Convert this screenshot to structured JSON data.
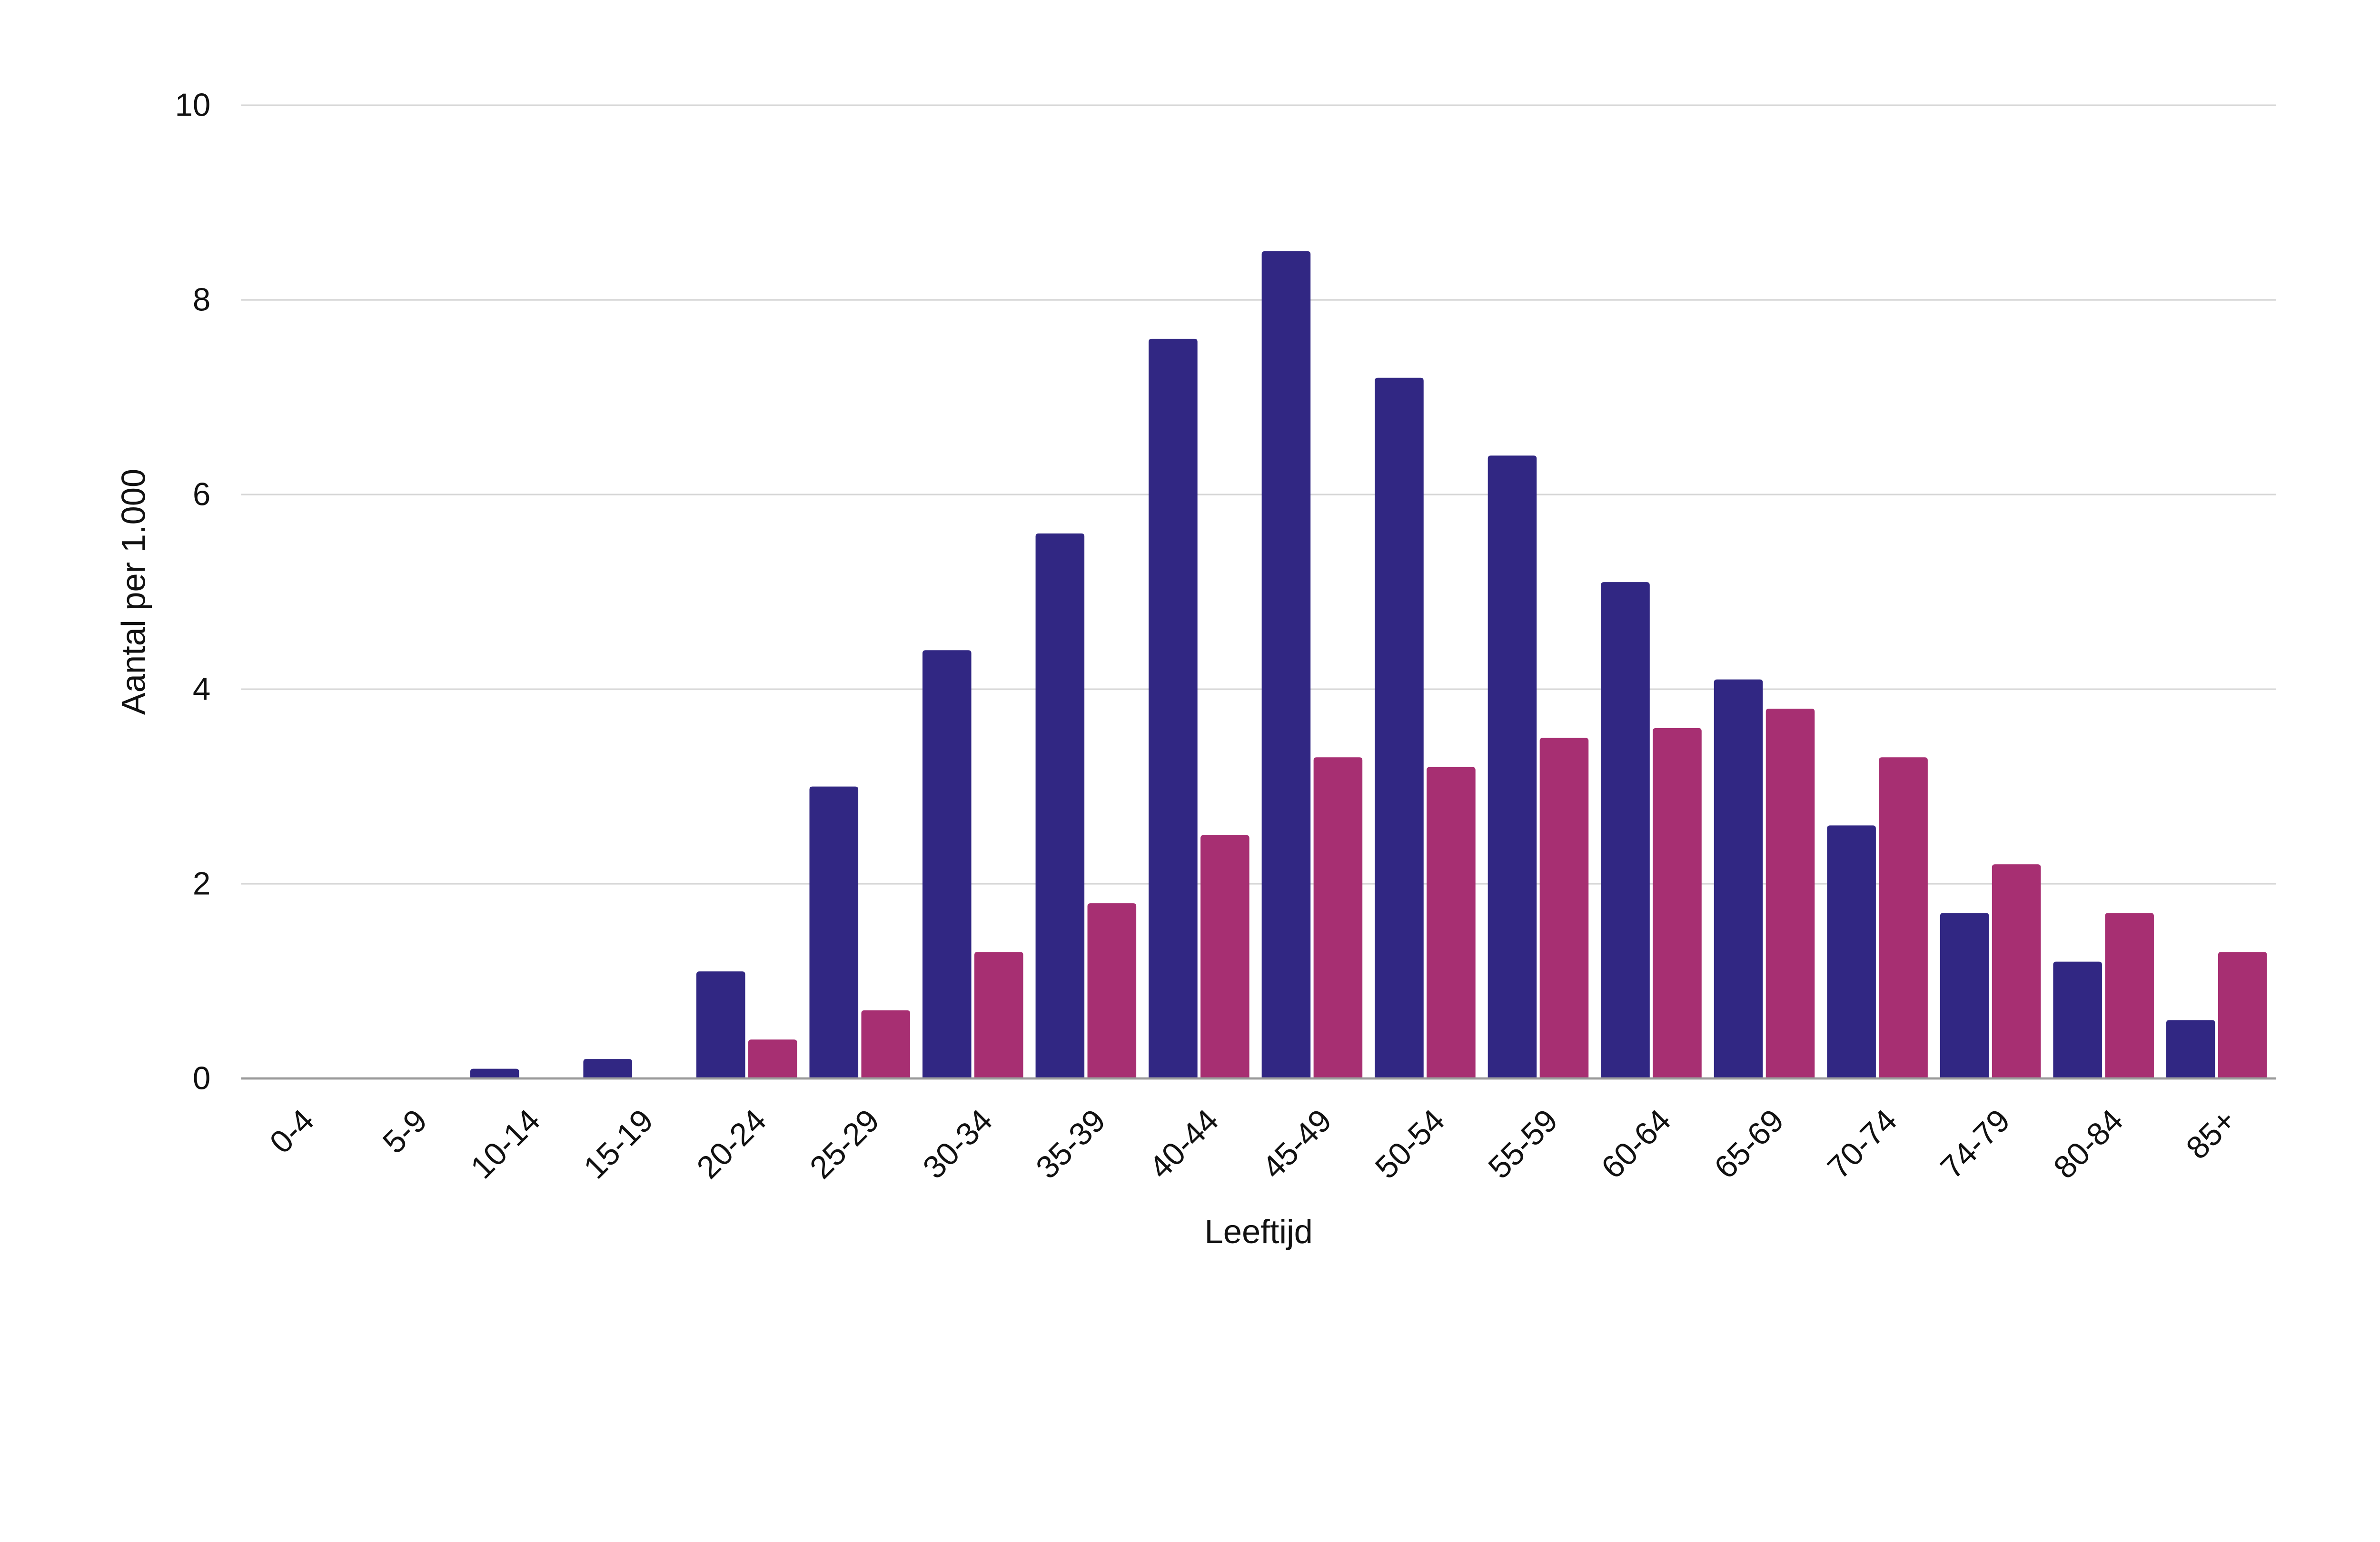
{
  "chart_data": {
    "type": "bar",
    "title": "",
    "xlabel": "Leeftijd",
    "ylabel": "Aantal per 1.000",
    "ylim": [
      0,
      10
    ],
    "yticks": [
      0,
      2,
      4,
      6,
      8,
      10
    ],
    "grid": true,
    "legend": "none",
    "categories": [
      "0-4",
      "5-9",
      "10-14",
      "15-19",
      "20-24",
      "25-29",
      "30-34",
      "35-39",
      "40-44",
      "45-49",
      "50-54",
      "55-59",
      "60-64",
      "65-69",
      "70-74",
      "74-79",
      "80-84",
      "85+"
    ],
    "series": [
      {
        "color": "#312783",
        "values": [
          0,
          0,
          0.1,
          0.2,
          1.1,
          3.0,
          4.4,
          5.6,
          7.6,
          8.5,
          7.2,
          6.4,
          5.1,
          4.1,
          2.6,
          1.7,
          1.2,
          0.6
        ]
      },
      {
        "color": "#a72f72",
        "values": [
          0,
          0,
          0,
          0,
          0.4,
          0.7,
          1.3,
          1.8,
          2.5,
          3.3,
          3.2,
          3.5,
          3.6,
          3.8,
          3.3,
          2.2,
          1.7,
          1.3
        ]
      }
    ]
  }
}
